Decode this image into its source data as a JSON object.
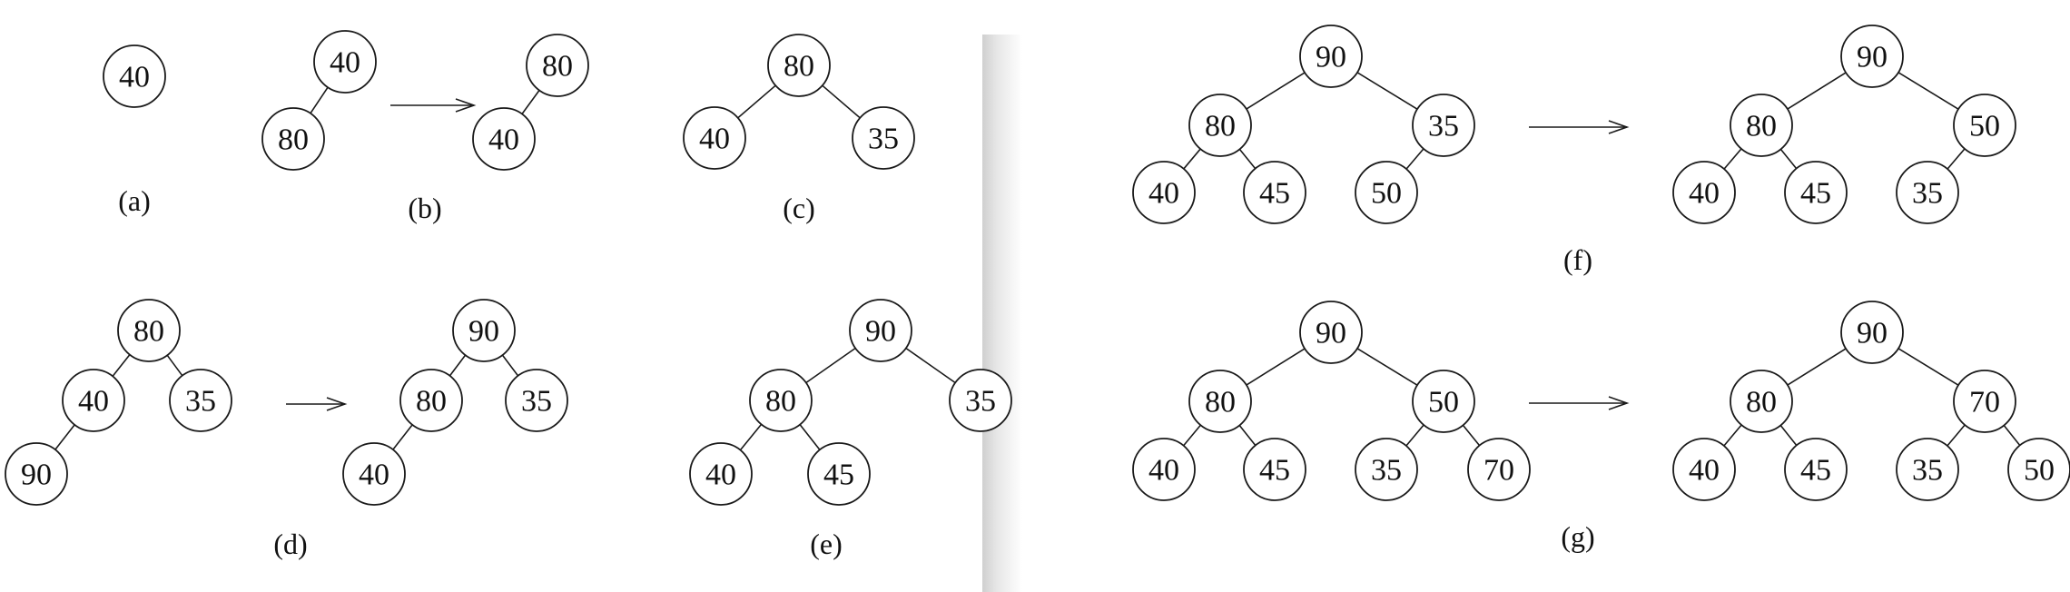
{
  "colors": {
    "background": "#ffffff",
    "ink": "#1a1a1a",
    "page_shadow": "#e2e2e2"
  },
  "panels": [
    {
      "id": "a",
      "label": "(a)",
      "trees": [
        {
          "nodes": [
            "40"
          ],
          "edges": []
        }
      ]
    },
    {
      "id": "b",
      "label": "(b)",
      "trees": [
        {
          "nodes": [
            "40",
            "80"
          ],
          "edges": [
            [
              0,
              1
            ]
          ]
        },
        {
          "nodes": [
            "80",
            "40"
          ],
          "edges": [
            [
              0,
              1
            ]
          ]
        }
      ]
    },
    {
      "id": "c",
      "label": "(c)",
      "trees": [
        {
          "nodes": [
            "80",
            "40",
            "35"
          ],
          "edges": [
            [
              0,
              1
            ],
            [
              0,
              2
            ]
          ]
        }
      ]
    },
    {
      "id": "d",
      "label": "(d)",
      "trees": [
        {
          "nodes": [
            "80",
            "40",
            "35",
            "90"
          ],
          "edges": [
            [
              0,
              1
            ],
            [
              0,
              2
            ],
            [
              1,
              3
            ]
          ]
        },
        {
          "nodes": [
            "90",
            "80",
            "35",
            "40"
          ],
          "edges": [
            [
              0,
              1
            ],
            [
              0,
              2
            ],
            [
              1,
              3
            ]
          ]
        }
      ]
    },
    {
      "id": "e",
      "label": "(e)",
      "trees": [
        {
          "nodes": [
            "90",
            "80",
            "35",
            "40",
            "45"
          ],
          "edges": [
            [
              0,
              1
            ],
            [
              0,
              2
            ],
            [
              1,
              3
            ],
            [
              1,
              4
            ]
          ]
        }
      ]
    },
    {
      "id": "f",
      "label": "(f)",
      "trees": [
        {
          "nodes": [
            "90",
            "80",
            "35",
            "40",
            "45",
            "50"
          ],
          "edges": [
            [
              0,
              1
            ],
            [
              0,
              2
            ],
            [
              1,
              3
            ],
            [
              1,
              4
            ],
            [
              2,
              5
            ]
          ]
        },
        {
          "nodes": [
            "90",
            "80",
            "50",
            "40",
            "45",
            "35"
          ],
          "edges": [
            [
              0,
              1
            ],
            [
              0,
              2
            ],
            [
              1,
              3
            ],
            [
              1,
              4
            ],
            [
              2,
              5
            ]
          ]
        }
      ]
    },
    {
      "id": "g",
      "label": "(g)",
      "trees": [
        {
          "nodes": [
            "90",
            "80",
            "50",
            "40",
            "45",
            "35",
            "70"
          ],
          "edges": [
            [
              0,
              1
            ],
            [
              0,
              2
            ],
            [
              1,
              3
            ],
            [
              1,
              4
            ],
            [
              2,
              5
            ],
            [
              2,
              6
            ]
          ]
        },
        {
          "nodes": [
            "90",
            "80",
            "70",
            "40",
            "45",
            "35",
            "50"
          ],
          "edges": [
            [
              0,
              1
            ],
            [
              0,
              2
            ],
            [
              1,
              3
            ],
            [
              1,
              4
            ],
            [
              2,
              5
            ],
            [
              2,
              6
            ]
          ]
        }
      ]
    }
  ]
}
